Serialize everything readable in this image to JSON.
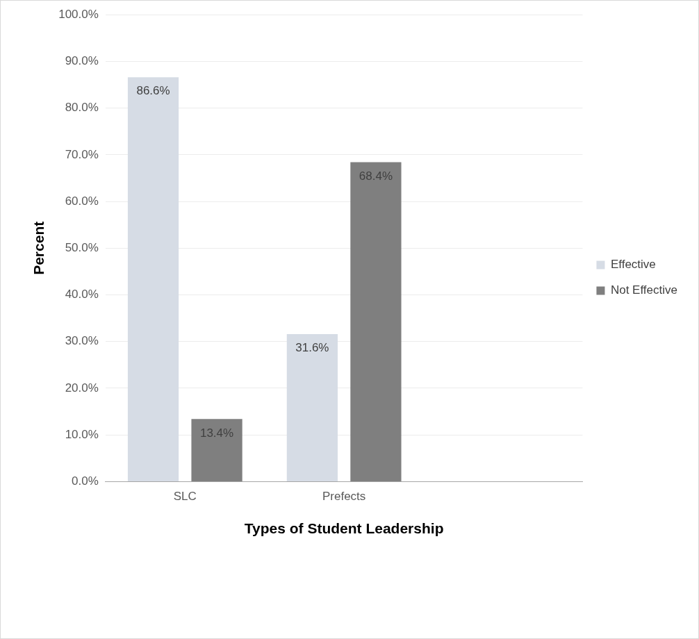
{
  "chart_data": {
    "type": "bar",
    "xlabel": "Types of Student Leadership",
    "ylabel": "Percent",
    "categories": [
      "SLC",
      "Prefects",
      null
    ],
    "series": [
      {
        "name": "Effective",
        "color": "#d6dce5",
        "values": [
          86.6,
          31.6,
          null
        ],
        "value_labels": [
          "86.6%",
          "31.6%",
          null
        ]
      },
      {
        "name": "Not Effective",
        "color": "#7f7f7f",
        "values": [
          13.4,
          68.4,
          null
        ],
        "value_labels": [
          "13.4%",
          "68.4%",
          null
        ]
      }
    ],
    "ylim": [
      0,
      100
    ],
    "yticks": [
      {
        "value": 0,
        "label": "0.0%"
      },
      {
        "value": 10,
        "label": "10.0%"
      },
      {
        "value": 20,
        "label": "20.0%"
      },
      {
        "value": 30,
        "label": "30.0%"
      },
      {
        "value": 40,
        "label": "40.0%"
      },
      {
        "value": 50,
        "label": "50.0%"
      },
      {
        "value": 60,
        "label": "60.0%"
      },
      {
        "value": 70,
        "label": "70.0%"
      },
      {
        "value": 80,
        "label": "80.0%"
      },
      {
        "value": 90,
        "label": "90.0%"
      },
      {
        "value": 100,
        "label": "100.0%"
      }
    ],
    "grid": "y",
    "legend": "right"
  }
}
